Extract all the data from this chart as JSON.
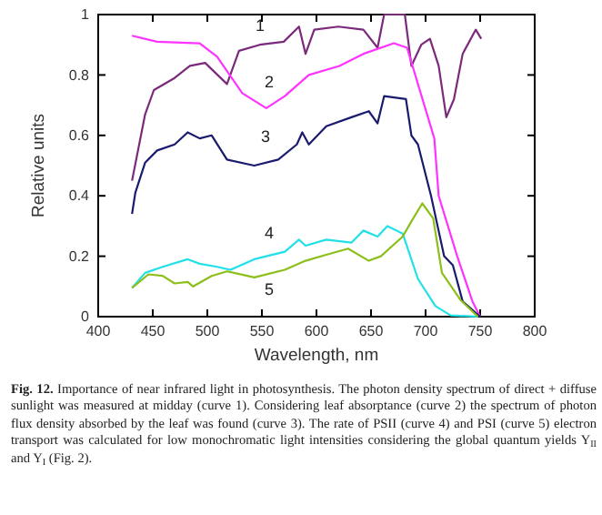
{
  "chart_data": {
    "type": "line",
    "xlabel": "Wavelength, nm",
    "ylabel": "Relative units",
    "xlim": [
      400,
      800
    ],
    "xticks": [
      400,
      450,
      500,
      550,
      600,
      650,
      700,
      750,
      800
    ],
    "ylim": [
      0,
      1
    ],
    "yticks": [
      0,
      0.2,
      0.4,
      0.6,
      0.8,
      1
    ],
    "grid": false,
    "marker": "none",
    "line_style": "solid",
    "series": [
      {
        "name": "1",
        "color": "#7b2a7b",
        "x": [
          431,
          443,
          451,
          470,
          484,
          498,
          518,
          529,
          548,
          570,
          584,
          590,
          598,
          620,
          643,
          656,
          662,
          681,
          687,
          696,
          704,
          712,
          719,
          726,
          734,
          746,
          751
        ],
        "values": [
          0.45,
          0.67,
          0.75,
          0.79,
          0.83,
          0.84,
          0.77,
          0.88,
          0.9,
          0.91,
          0.96,
          0.87,
          0.95,
          0.96,
          0.95,
          0.89,
          1,
          1,
          0.83,
          0.9,
          0.92,
          0.83,
          0.66,
          0.72,
          0.87,
          0.95,
          0.92
        ]
      },
      {
        "name": "2",
        "color": "#ff33ff",
        "x": [
          431,
          454,
          493,
          509,
          532,
          554,
          571,
          593,
          621,
          643,
          671,
          683,
          708,
          712,
          729,
          743,
          750
        ],
        "values": [
          0.93,
          0.91,
          0.905,
          0.86,
          0.74,
          0.69,
          0.73,
          0.8,
          0.83,
          0.87,
          0.905,
          0.89,
          0.59,
          0.4,
          0.2,
          0.05,
          0
        ]
      },
      {
        "name": "3",
        "color": "#1a1a6e",
        "x": [
          431,
          434,
          443,
          454,
          470,
          482,
          493,
          504,
          518,
          543,
          565,
          582,
          587,
          593,
          609,
          632,
          648,
          656,
          662,
          682,
          687,
          693,
          705,
          717,
          725,
          734,
          750
        ],
        "values": [
          0.34,
          0.41,
          0.51,
          0.55,
          0.57,
          0.61,
          0.59,
          0.6,
          0.52,
          0.5,
          0.52,
          0.57,
          0.61,
          0.57,
          0.63,
          0.66,
          0.68,
          0.64,
          0.73,
          0.72,
          0.6,
          0.57,
          0.4,
          0.2,
          0.17,
          0.05,
          0
        ]
      },
      {
        "name": "4",
        "color": "#22e0e8",
        "x": [
          431,
          443,
          459,
          482,
          493,
          509,
          521,
          543,
          571,
          584,
          590,
          609,
          632,
          643,
          656,
          665,
          679,
          693,
          709,
          723,
          748
        ],
        "values": [
          0.095,
          0.145,
          0.165,
          0.19,
          0.175,
          0.165,
          0.155,
          0.19,
          0.215,
          0.255,
          0.235,
          0.255,
          0.245,
          0.285,
          0.265,
          0.3,
          0.275,
          0.125,
          0.035,
          0.004,
          0
        ]
      },
      {
        "name": "5",
        "color": "#8cbf1a",
        "x": [
          431,
          446,
          459,
          470,
          482,
          487,
          504,
          518,
          543,
          571,
          590,
          609,
          629,
          648,
          659,
          679,
          687,
          697,
          707,
          715,
          732,
          748
        ],
        "values": [
          0.095,
          0.14,
          0.135,
          0.11,
          0.115,
          0.1,
          0.135,
          0.15,
          0.13,
          0.155,
          0.185,
          0.205,
          0.225,
          0.185,
          0.2,
          0.265,
          0.315,
          0.375,
          0.325,
          0.145,
          0.055,
          0
        ]
      }
    ],
    "annotations": [
      "Fig. 12.",
      "Importance of near infrared light in photosynthesis. The photon density spectrum of direct + diffuse sunlight was measured at midday (curve 1). Considering leaf absorptance (curve 2) the spectrum of photon flux density absorbed by the leaf was found (curve 3). The rate of PSII (curve 4) and PSI (curve 5) electron transport was calculated for low monochromatic light intensities considering the global quantum yields Y$_{II}$ and Y$_{I}$ (Fig. 2)."
    ]
  }
}
